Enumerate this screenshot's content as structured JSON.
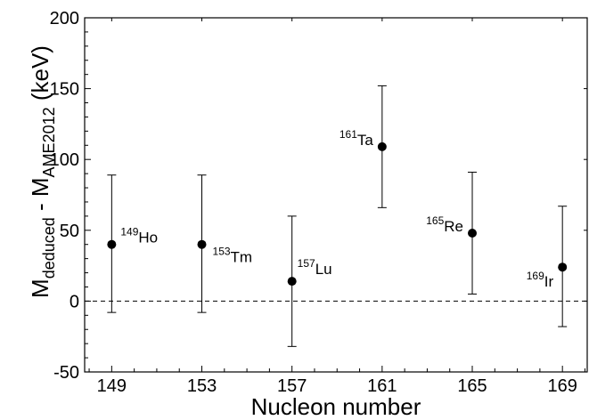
{
  "chart_data": {
    "type": "scatter",
    "title": "",
    "xlabel": "Nucleon number",
    "ylabel": {
      "base": "M",
      "sub1": "deduced",
      "middle": " - M",
      "sub2": "AME2012",
      "unit": " (keV)"
    },
    "xlim": [
      147.8,
      170.1
    ],
    "ylim": [
      -50,
      200
    ],
    "x_ticks": [
      149,
      153,
      157,
      161,
      165,
      169
    ],
    "y_ticks": [
      -50,
      0,
      50,
      100,
      150,
      200
    ],
    "reference_line": {
      "y": 0,
      "style": "dashed"
    },
    "grid": false,
    "series": [
      {
        "points": [
          {
            "x": 149,
            "y": 40,
            "err_low": 48,
            "err_high": 49,
            "label_mass": "149",
            "label_element": "Ho"
          },
          {
            "x": 153,
            "y": 40,
            "err_low": 48,
            "err_high": 49,
            "label_mass": "153",
            "label_element": "Tm"
          },
          {
            "x": 157,
            "y": 14,
            "err_low": 46,
            "err_high": 46,
            "label_mass": "157",
            "label_element": "Lu"
          },
          {
            "x": 161,
            "y": 109,
            "err_low": 43,
            "err_high": 43,
            "label_mass": "161",
            "label_element": "Ta"
          },
          {
            "x": 165,
            "y": 48,
            "err_low": 43,
            "err_high": 43,
            "label_mass": "165",
            "label_element": "Re"
          },
          {
            "x": 169,
            "y": 24,
            "err_low": 42,
            "err_high": 43,
            "label_mass": "169",
            "label_element": "Ir"
          }
        ]
      }
    ]
  }
}
